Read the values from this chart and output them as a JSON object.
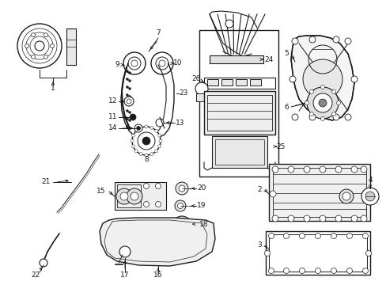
{
  "background": "#ffffff",
  "lc": "#1a1a1a",
  "fig_width": 4.89,
  "fig_height": 3.6,
  "dpi": 100,
  "fs": 6.5,
  "lw": 0.7
}
